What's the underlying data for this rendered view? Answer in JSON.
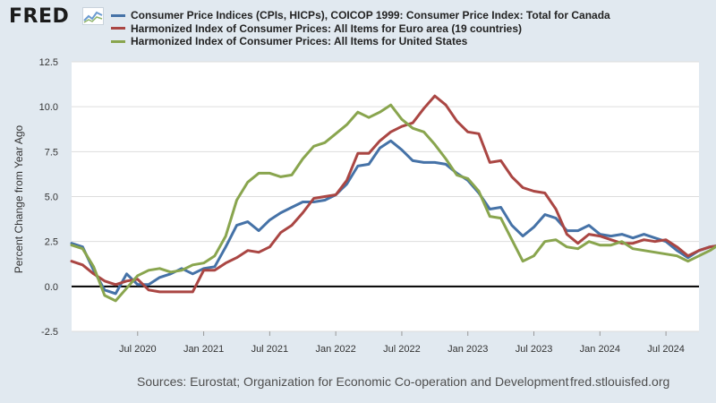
{
  "header": {
    "logo_text": "FRED",
    "logo_icon": "chart-line-icon"
  },
  "colors": {
    "canada": "#4572a7",
    "euro": "#aa4643",
    "us": "#89a54e",
    "zero_line": "#000000",
    "grid": "#dddddd",
    "axis_text": "#333333"
  },
  "chart_data": {
    "type": "line",
    "title": "",
    "xlabel": "",
    "ylabel": "Percent Change from Year Ago",
    "ylim": [
      -2.5,
      12.5
    ],
    "yticks": [
      -2.5,
      0.0,
      2.5,
      5.0,
      7.5,
      10.0,
      12.5
    ],
    "ytick_labels": [
      "-2.5",
      "0.0",
      "2.5",
      "5.0",
      "7.5",
      "10.0",
      "12.5"
    ],
    "x_range": [
      "2020-01",
      "2024-10"
    ],
    "xticks": [
      {
        "date": "2020-07",
        "label": "Jul 2020"
      },
      {
        "date": "2021-01",
        "label": "Jan 2021"
      },
      {
        "date": "2021-07",
        "label": "Jul 2021"
      },
      {
        "date": "2022-01",
        "label": "Jan 2022"
      },
      {
        "date": "2022-07",
        "label": "Jul 2022"
      },
      {
        "date": "2023-01",
        "label": "Jan 2023"
      },
      {
        "date": "2023-07",
        "label": "Jul 2023"
      },
      {
        "date": "2024-01",
        "label": "Jan 2024"
      },
      {
        "date": "2024-07",
        "label": "Jul 2024"
      }
    ],
    "zero_line": true,
    "grid": "horizontal",
    "legend_position": "top",
    "start": "2020-01",
    "series": [
      {
        "name": "Consumer Price Indices (CPIs, HICPs), COICOP 1999: Consumer Price Index: Total for Canada",
        "key": "canada",
        "values": [
          2.4,
          2.2,
          0.9,
          -0.2,
          -0.4,
          0.7,
          0.1,
          0.1,
          0.5,
          0.7,
          1.0,
          0.7,
          1.0,
          1.1,
          2.2,
          3.4,
          3.6,
          3.1,
          3.7,
          4.1,
          4.4,
          4.7,
          4.7,
          4.8,
          5.1,
          5.7,
          6.7,
          6.8,
          7.7,
          8.1,
          7.6,
          7.0,
          6.9,
          6.9,
          6.8,
          6.3,
          5.9,
          5.2,
          4.3,
          4.4,
          3.4,
          2.8,
          3.3,
          4.0,
          3.8,
          3.1,
          3.1,
          3.4,
          2.9,
          2.8,
          2.9,
          2.7,
          2.9,
          2.7,
          2.5,
          2.0,
          1.6,
          2.0,
          2.2,
          2.3
        ]
      },
      {
        "name": "Harmonized Index of Consumer Prices: All Items for Euro area (19 countries)",
        "key": "euro",
        "values": [
          1.4,
          1.2,
          0.7,
          0.3,
          0.1,
          0.3,
          0.4,
          -0.2,
          -0.3,
          -0.3,
          -0.3,
          -0.3,
          0.9,
          0.9,
          1.3,
          1.6,
          2.0,
          1.9,
          2.2,
          3.0,
          3.4,
          4.1,
          4.9,
          5.0,
          5.1,
          5.9,
          7.4,
          7.4,
          8.1,
          8.6,
          8.9,
          9.1,
          9.9,
          10.6,
          10.1,
          9.2,
          8.6,
          8.5,
          6.9,
          7.0,
          6.1,
          5.5,
          5.3,
          5.2,
          4.3,
          2.9,
          2.4,
          2.9,
          2.8,
          2.6,
          2.4,
          2.4,
          2.6,
          2.5,
          2.6,
          2.2,
          1.7,
          2.0,
          2.2,
          2.3
        ]
      },
      {
        "name": "Harmonized Index of Consumer Prices: All Items for United States",
        "key": "us",
        "values": [
          2.3,
          2.1,
          1.1,
          -0.5,
          -0.8,
          -0.1,
          0.6,
          0.9,
          1.0,
          0.8,
          0.9,
          1.2,
          1.3,
          1.7,
          2.8,
          4.8,
          5.8,
          6.3,
          6.3,
          6.1,
          6.2,
          7.1,
          7.8,
          8.0,
          8.5,
          9.0,
          9.7,
          9.4,
          9.7,
          10.1,
          9.3,
          8.8,
          8.6,
          7.9,
          7.1,
          6.2,
          6.0,
          5.3,
          3.9,
          3.8,
          2.6,
          1.4,
          1.7,
          2.5,
          2.6,
          2.2,
          2.1,
          2.5,
          2.3,
          2.3,
          2.5,
          2.1,
          2.0,
          1.9,
          1.8,
          1.7,
          1.4,
          1.7,
          2.0,
          2.4
        ]
      }
    ]
  },
  "footer": {
    "sources": "Sources: Eurostat; Organization for Economic Co-operation and Development",
    "url": "fred.stlouisfed.org"
  }
}
